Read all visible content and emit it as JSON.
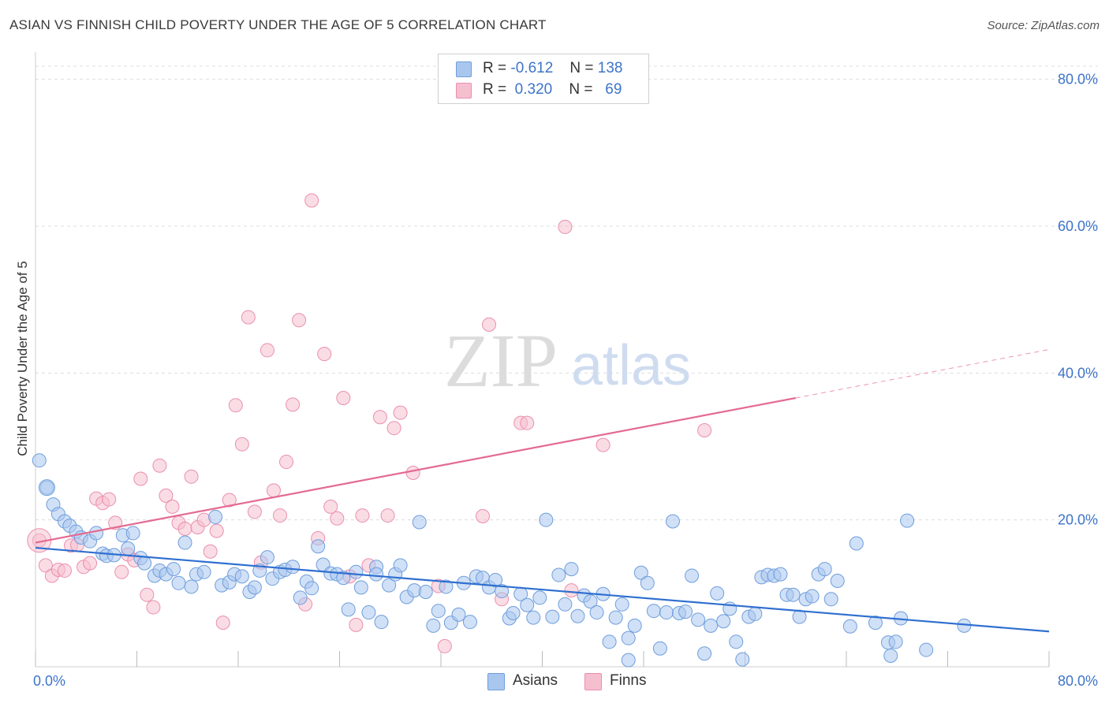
{
  "title": "ASIAN VS FINNISH CHILD POVERTY UNDER THE AGE OF 5 CORRELATION CHART",
  "source": "Source: ZipAtlas.com",
  "watermark": {
    "zip": "ZIP",
    "atlas": "atlas"
  },
  "legend": {
    "rows": [
      {
        "r_label": "R =",
        "r_value": "-0.612",
        "n_label": "N =",
        "n_value": "138"
      },
      {
        "r_label": "R =",
        "r_value": "0.320",
        "n_label": "N =",
        "n_value": "69"
      }
    ]
  },
  "bottom_legend": {
    "asians": "Asians",
    "finns": "Finns"
  },
  "colors": {
    "asians_fill": "#a9c7ee",
    "asians_stroke": "#6f9edc",
    "asians_line": "#2f6fd0",
    "finns_fill": "#f6bfd0",
    "finns_stroke": "#ea8fae",
    "finns_line": "#e46a92",
    "tick_text": "#3d74c9",
    "grid": "#dddddd"
  },
  "chart_data": {
    "type": "scatter",
    "title": "ASIAN VS FINNISH CHILD POVERTY UNDER THE AGE OF 5 CORRELATION CHART",
    "xlabel": "",
    "ylabel": "Child Poverty Under the Age of 5",
    "xlim": [
      0,
      80
    ],
    "ylim": [
      0,
      82
    ],
    "x_tick_labels": [
      "0.0%",
      "80.0%"
    ],
    "y_tick_labels": [
      "20.0%",
      "40.0%",
      "60.0%",
      "80.0%"
    ],
    "y_ticks": [
      20,
      40,
      60,
      80
    ],
    "grid": "horizontal dashed",
    "legend_position": "top-center",
    "series": [
      {
        "name": "Asians",
        "R": -0.612,
        "N": 138,
        "trend": {
          "x": [
            0,
            80
          ],
          "y": [
            16.2,
            4.8
          ]
        },
        "points": [
          [
            0.3,
            28.1
          ],
          [
            0.9,
            24.4
          ],
          [
            1.4,
            22.1
          ],
          [
            1.8,
            20.8
          ],
          [
            2.3,
            19.8
          ],
          [
            2.7,
            19.2
          ],
          [
            3.2,
            18.4
          ],
          [
            3.6,
            17.6
          ],
          [
            4.3,
            17.1
          ],
          [
            4.8,
            18.2
          ],
          [
            5.3,
            15.4
          ],
          [
            5.6,
            15.1
          ],
          [
            6.2,
            15.2
          ],
          [
            6.9,
            17.9
          ],
          [
            7.3,
            16.1
          ],
          [
            7.7,
            18.2
          ],
          [
            8.3,
            14.8
          ],
          [
            8.6,
            14.1
          ],
          [
            9.4,
            12.4
          ],
          [
            9.8,
            13.1
          ],
          [
            10.3,
            12.6
          ],
          [
            10.9,
            13.3
          ],
          [
            11.3,
            11.4
          ],
          [
            11.8,
            16.9
          ],
          [
            12.3,
            10.9
          ],
          [
            12.7,
            12.6
          ],
          [
            13.3,
            12.9
          ],
          [
            14.2,
            20.4
          ],
          [
            14.7,
            11.1
          ],
          [
            15.3,
            11.5
          ],
          [
            15.7,
            12.6
          ],
          [
            16.3,
            12.3
          ],
          [
            16.9,
            10.2
          ],
          [
            17.3,
            10.8
          ],
          [
            17.7,
            13.1
          ],
          [
            18.3,
            14.9
          ],
          [
            18.7,
            12.0
          ],
          [
            19.3,
            12.9
          ],
          [
            19.7,
            13.2
          ],
          [
            20.3,
            13.6
          ],
          [
            20.9,
            9.4
          ],
          [
            21.4,
            11.6
          ],
          [
            21.8,
            10.7
          ],
          [
            22.3,
            16.4
          ],
          [
            22.7,
            13.9
          ],
          [
            23.3,
            12.7
          ],
          [
            23.8,
            12.6
          ],
          [
            24.3,
            12.1
          ],
          [
            24.7,
            7.8
          ],
          [
            25.3,
            12.9
          ],
          [
            25.7,
            10.8
          ],
          [
            26.3,
            7.4
          ],
          [
            26.9,
            13.6
          ],
          [
            27.3,
            6.1
          ],
          [
            27.9,
            11.1
          ],
          [
            28.4,
            12.6
          ],
          [
            28.8,
            13.8
          ],
          [
            29.3,
            9.5
          ],
          [
            29.9,
            10.4
          ],
          [
            30.3,
            19.7
          ],
          [
            30.8,
            10.2
          ],
          [
            31.4,
            5.6
          ],
          [
            31.8,
            7.6
          ],
          [
            32.4,
            10.9
          ],
          [
            32.8,
            6.0
          ],
          [
            33.4,
            7.1
          ],
          [
            33.8,
            11.4
          ],
          [
            34.3,
            6.1
          ],
          [
            34.8,
            12.3
          ],
          [
            35.3,
            12.1
          ],
          [
            35.8,
            10.8
          ],
          [
            36.3,
            11.8
          ],
          [
            36.8,
            10.3
          ],
          [
            37.4,
            6.6
          ],
          [
            37.7,
            7.3
          ],
          [
            38.3,
            9.9
          ],
          [
            38.8,
            8.4
          ],
          [
            39.3,
            6.7
          ],
          [
            39.8,
            9.4
          ],
          [
            40.3,
            20.0
          ],
          [
            40.8,
            6.8
          ],
          [
            41.3,
            12.5
          ],
          [
            41.8,
            8.5
          ],
          [
            42.3,
            13.3
          ],
          [
            42.8,
            6.9
          ],
          [
            43.3,
            9.7
          ],
          [
            43.8,
            8.9
          ],
          [
            44.3,
            7.4
          ],
          [
            44.8,
            9.9
          ],
          [
            45.3,
            3.4
          ],
          [
            45.8,
            6.7
          ],
          [
            46.3,
            8.5
          ],
          [
            46.8,
            3.9
          ],
          [
            47.3,
            5.6
          ],
          [
            47.8,
            12.8
          ],
          [
            48.3,
            11.4
          ],
          [
            48.8,
            7.6
          ],
          [
            49.3,
            2.5
          ],
          [
            49.8,
            7.4
          ],
          [
            50.3,
            19.8
          ],
          [
            50.8,
            7.3
          ],
          [
            51.3,
            7.5
          ],
          [
            51.8,
            12.4
          ],
          [
            52.3,
            6.4
          ],
          [
            52.8,
            1.8
          ],
          [
            53.3,
            5.6
          ],
          [
            53.8,
            10.0
          ],
          [
            54.3,
            6.2
          ],
          [
            54.8,
            7.9
          ],
          [
            55.3,
            3.4
          ],
          [
            55.8,
            1.0
          ],
          [
            56.3,
            6.8
          ],
          [
            56.8,
            7.2
          ],
          [
            57.3,
            12.2
          ],
          [
            57.8,
            12.5
          ],
          [
            58.3,
            12.4
          ],
          [
            58.8,
            12.6
          ],
          [
            59.3,
            9.8
          ],
          [
            59.8,
            9.8
          ],
          [
            60.3,
            6.8
          ],
          [
            60.8,
            9.2
          ],
          [
            61.3,
            9.6
          ],
          [
            61.8,
            12.6
          ],
          [
            62.3,
            13.3
          ],
          [
            62.8,
            9.2
          ],
          [
            63.3,
            11.7
          ],
          [
            64.3,
            5.5
          ],
          [
            64.8,
            16.8
          ],
          [
            66.3,
            6.0
          ],
          [
            67.3,
            3.3
          ],
          [
            67.5,
            1.5
          ],
          [
            67.9,
            3.4
          ],
          [
            68.3,
            6.6
          ],
          [
            68.8,
            19.9
          ],
          [
            70.3,
            2.3
          ],
          [
            73.3,
            5.6
          ],
          [
            46.8,
            0.9
          ],
          [
            26.9,
            12.6
          ]
        ]
      },
      {
        "name": "Finns",
        "R": 0.32,
        "N": 69,
        "trend": {
          "x": [
            0,
            60
          ],
          "y": [
            16.9,
            36.6
          ]
        },
        "trend_dashed": {
          "x": [
            60,
            80
          ],
          "y": [
            36.6,
            43.2
          ]
        },
        "points": [
          [
            0.3,
            17.2
          ],
          [
            0.8,
            13.8
          ],
          [
            1.3,
            12.4
          ],
          [
            1.8,
            13.2
          ],
          [
            2.3,
            13.1
          ],
          [
            2.8,
            16.5
          ],
          [
            3.3,
            16.6
          ],
          [
            3.8,
            13.6
          ],
          [
            4.3,
            14.1
          ],
          [
            4.8,
            22.9
          ],
          [
            5.3,
            22.3
          ],
          [
            5.8,
            22.8
          ],
          [
            6.3,
            19.6
          ],
          [
            6.8,
            12.9
          ],
          [
            7.3,
            15.3
          ],
          [
            7.8,
            14.5
          ],
          [
            8.3,
            25.6
          ],
          [
            8.8,
            9.8
          ],
          [
            9.3,
            8.1
          ],
          [
            9.8,
            27.4
          ],
          [
            10.3,
            23.3
          ],
          [
            10.8,
            21.8
          ],
          [
            11.3,
            19.6
          ],
          [
            11.8,
            18.8
          ],
          [
            12.3,
            25.9
          ],
          [
            12.8,
            19.0
          ],
          [
            13.3,
            20.0
          ],
          [
            13.8,
            15.7
          ],
          [
            14.3,
            18.5
          ],
          [
            14.8,
            6.0
          ],
          [
            15.3,
            22.7
          ],
          [
            15.8,
            35.6
          ],
          [
            16.3,
            30.3
          ],
          [
            16.8,
            47.6
          ],
          [
            17.3,
            21.1
          ],
          [
            17.8,
            14.2
          ],
          [
            18.3,
            43.1
          ],
          [
            18.8,
            24.0
          ],
          [
            19.3,
            20.6
          ],
          [
            19.8,
            27.9
          ],
          [
            20.3,
            35.7
          ],
          [
            20.8,
            47.2
          ],
          [
            21.3,
            8.5
          ],
          [
            21.8,
            63.5
          ],
          [
            22.3,
            17.5
          ],
          [
            22.8,
            42.6
          ],
          [
            23.3,
            21.8
          ],
          [
            23.8,
            20.2
          ],
          [
            24.3,
            36.6
          ],
          [
            24.8,
            12.3
          ],
          [
            25.3,
            5.7
          ],
          [
            25.8,
            20.6
          ],
          [
            26.3,
            13.8
          ],
          [
            27.8,
            20.6
          ],
          [
            28.3,
            32.5
          ],
          [
            28.8,
            34.6
          ],
          [
            29.8,
            26.4
          ],
          [
            32.3,
            2.8
          ],
          [
            35.8,
            46.6
          ],
          [
            35.3,
            20.5
          ],
          [
            31.8,
            11.0
          ],
          [
            36.8,
            9.2
          ],
          [
            38.3,
            33.2
          ],
          [
            38.8,
            33.2
          ],
          [
            41.8,
            59.9
          ],
          [
            42.3,
            10.4
          ],
          [
            44.8,
            30.2
          ],
          [
            52.8,
            32.2
          ],
          [
            27.2,
            34.0
          ]
        ]
      }
    ]
  }
}
